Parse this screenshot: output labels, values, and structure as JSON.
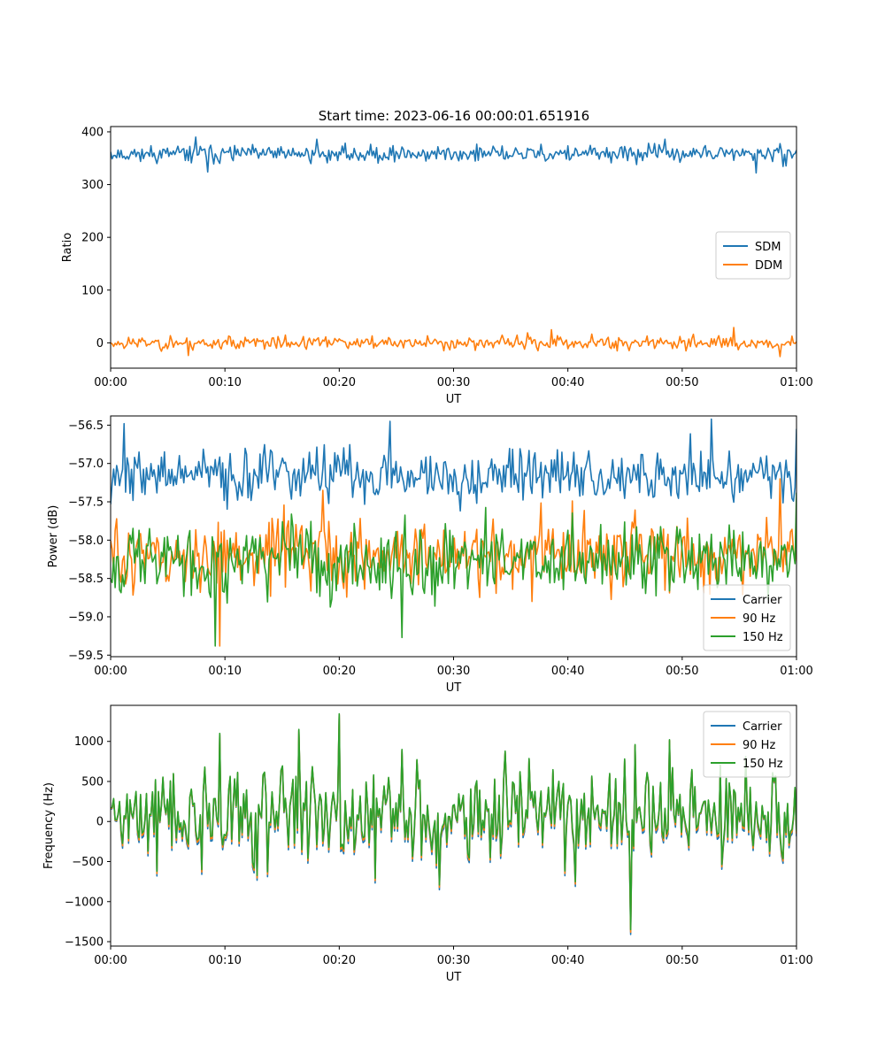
{
  "figure": {
    "title": "Start time: 2023-06-16 00:00:01.651916"
  },
  "colors": {
    "blue": "#1f77b4",
    "orange": "#ff7f0e",
    "green": "#2ca02c"
  },
  "chart_data": [
    {
      "type": "line",
      "title": "Start time: 2023-06-16 00:00:01.651916",
      "xlabel": "UT",
      "ylabel": "Ratio",
      "xticks": [
        "00:00",
        "00:10",
        "00:20",
        "00:30",
        "00:40",
        "00:50",
        "01:00"
      ],
      "xlim_minutes": [
        0,
        60
      ],
      "yticks": [
        0,
        100,
        200,
        300,
        400
      ],
      "ytick_labels": [
        "0",
        "100",
        "200",
        "300",
        "400"
      ],
      "ylim": [
        -48,
        410
      ],
      "legend": {
        "loc": "center-right",
        "entries": [
          "SDM",
          "DDM"
        ]
      },
      "series": [
        {
          "name": "SDM",
          "color": "blue",
          "mean": 358,
          "spread": 11,
          "min": 322,
          "max": 390,
          "seed": 11,
          "points": [
            [
              0,
              362
            ],
            [
              7.5,
              390
            ],
            [
              8.5,
              324
            ],
            [
              18,
              386
            ],
            [
              48.5,
              386
            ],
            [
              56.5,
              322
            ],
            [
              60,
              365
            ]
          ]
        },
        {
          "name": "DDM",
          "color": "orange",
          "mean": 0,
          "spread": 9,
          "min": -26,
          "max": 29,
          "seed": 23,
          "points": [
            [
              0,
              0
            ],
            [
              6.8,
              -24
            ],
            [
              38.5,
              25
            ],
            [
              54.5,
              29
            ],
            [
              58.5,
              -26
            ],
            [
              60,
              2
            ]
          ]
        }
      ]
    },
    {
      "type": "line",
      "title": "",
      "xlabel": "UT",
      "ylabel": "Power (dB)",
      "xticks": [
        "00:00",
        "00:10",
        "00:20",
        "00:30",
        "00:40",
        "00:50",
        "01:00"
      ],
      "xlim_minutes": [
        0,
        60
      ],
      "yticks": [
        -59.5,
        -59.0,
        -58.5,
        -58.0,
        -57.5,
        -57.0,
        -56.5
      ],
      "ytick_labels": [
        "−59.5",
        "−59.0",
        "−58.5",
        "−58.0",
        "−57.5",
        "−57.0",
        "−56.5"
      ],
      "ylim": [
        -59.52,
        -56.38
      ],
      "legend": {
        "loc": "lower-right",
        "entries": [
          "Carrier",
          "90 Hz",
          "150 Hz"
        ]
      },
      "series": [
        {
          "name": "Carrier",
          "color": "blue",
          "mean": -57.15,
          "spread": 0.24,
          "min": -57.85,
          "max": -56.42,
          "seed": 37,
          "points": [
            [
              1.2,
              -56.48
            ],
            [
              24.5,
              -56.45
            ],
            [
              52.5,
              -56.42
            ],
            [
              60,
              -56.55
            ]
          ]
        },
        {
          "name": "90 Hz",
          "color": "orange",
          "mean": -58.2,
          "spread": 0.33,
          "min": -59.38,
          "max": -57.2,
          "seed": 51,
          "points": [
            [
              9.5,
              -59.38
            ],
            [
              18.5,
              -57.35
            ],
            [
              58.5,
              -57.2
            ]
          ]
        },
        {
          "name": "150 Hz",
          "color": "green",
          "mean": -58.25,
          "spread": 0.33,
          "min": -59.38,
          "max": -57.3,
          "seed": 67,
          "points": [
            [
              9.2,
              -59.38
            ],
            [
              25.5,
              -59.27
            ],
            [
              60,
              -57.38
            ]
          ]
        }
      ]
    },
    {
      "type": "line",
      "title": "",
      "xlabel": "UT",
      "ylabel": "Frequency (Hz)",
      "xticks": [
        "00:00",
        "00:10",
        "00:20",
        "00:30",
        "00:40",
        "00:50",
        "01:00"
      ],
      "xlim_minutes": [
        0,
        60
      ],
      "yticks": [
        -1500,
        -1000,
        -500,
        0,
        500,
        1000
      ],
      "ytick_labels": [
        "−1500",
        "−1000",
        "−500",
        "0",
        "500",
        "1000"
      ],
      "ylim": [
        -1555,
        1450
      ],
      "legend": {
        "loc": "upper-right",
        "entries": [
          "Carrier",
          "90 Hz",
          "150 Hz"
        ]
      },
      "series": [
        {
          "name": "Carrier",
          "color": "blue",
          "offset": -60,
          "follows": "150 Hz"
        },
        {
          "name": "90 Hz",
          "color": "orange",
          "offset": -30,
          "follows": "150 Hz"
        },
        {
          "name": "150 Hz",
          "color": "green",
          "mean": 80,
          "spread": 430,
          "min": -1350,
          "max": 1345,
          "seed": 89,
          "points": [
            [
              9.5,
              1100
            ],
            [
              16.5,
              1150
            ],
            [
              20,
              1345
            ],
            [
              25.5,
              900
            ],
            [
              45.5,
              -1350
            ]
          ]
        }
      ]
    }
  ]
}
